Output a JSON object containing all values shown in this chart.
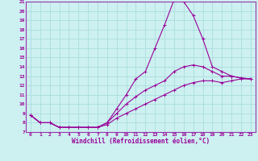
{
  "xlabel": "Windchill (Refroidissement éolien,°C)",
  "bg_color": "#cdf0f0",
  "grid_color": "#aadddd",
  "line_color": "#990099",
  "spine_color": "#9933aa",
  "xlim": [
    -0.5,
    23.5
  ],
  "ylim": [
    7,
    21
  ],
  "xticks": [
    0,
    1,
    2,
    3,
    4,
    5,
    6,
    7,
    8,
    9,
    10,
    11,
    12,
    13,
    14,
    15,
    16,
    17,
    18,
    19,
    20,
    21,
    22,
    23
  ],
  "yticks": [
    7,
    8,
    9,
    10,
    11,
    12,
    13,
    14,
    15,
    16,
    17,
    18,
    19,
    20,
    21
  ],
  "curve1_x": [
    0,
    1,
    2,
    3,
    4,
    5,
    6,
    7,
    8,
    9,
    10,
    11,
    12,
    13,
    14,
    15,
    16,
    17,
    18,
    19,
    20,
    21,
    22,
    23
  ],
  "curve1_y": [
    8.8,
    8.0,
    8.0,
    7.5,
    7.5,
    7.5,
    7.5,
    7.5,
    8.0,
    9.5,
    11.0,
    12.7,
    13.5,
    16.0,
    18.5,
    21.2,
    21.0,
    19.5,
    17.0,
    14.0,
    13.5,
    13.0,
    12.8,
    12.7
  ],
  "curve2_x": [
    0,
    1,
    2,
    3,
    4,
    5,
    6,
    7,
    8,
    9,
    10,
    11,
    12,
    13,
    14,
    15,
    16,
    17,
    18,
    19,
    20,
    21,
    22,
    23
  ],
  "curve2_y": [
    8.8,
    8.0,
    8.0,
    7.5,
    7.5,
    7.5,
    7.5,
    7.5,
    8.0,
    9.0,
    10.0,
    10.8,
    11.5,
    12.0,
    12.5,
    13.5,
    14.0,
    14.2,
    14.0,
    13.5,
    13.0,
    13.0,
    12.8,
    12.7
  ],
  "curve3_x": [
    0,
    1,
    2,
    3,
    4,
    5,
    6,
    7,
    8,
    9,
    10,
    11,
    12,
    13,
    14,
    15,
    16,
    17,
    18,
    19,
    20,
    21,
    22,
    23
  ],
  "curve3_y": [
    8.8,
    8.0,
    8.0,
    7.5,
    7.5,
    7.5,
    7.5,
    7.5,
    7.8,
    8.5,
    9.0,
    9.5,
    10.0,
    10.5,
    11.0,
    11.5,
    12.0,
    12.3,
    12.5,
    12.5,
    12.3,
    12.5,
    12.7,
    12.7
  ],
  "tick_fontsize": 4.5,
  "xlabel_fontsize": 5.5
}
